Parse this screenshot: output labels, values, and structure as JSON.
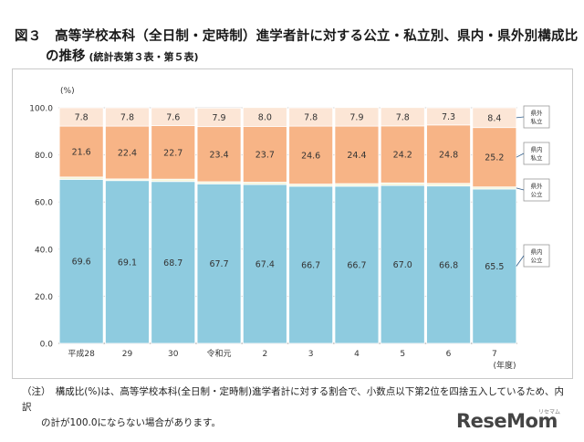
{
  "header": {
    "title_line1": "図３　高等学校本科（全日制・定時制）進学者計に対する公立・私立別、県内・県外別構成比",
    "title_line2": "の推移",
    "title_sub": "(統計表第３表・第５表)"
  },
  "note": {
    "line1": "（注）　構成比(%)は、高等学校本科(全日制・定時制)進学者計に対する割合で、小数点以下第2位を四捨五入しているため、内訳",
    "line2": "の計が100.0にならない場合があります。"
  },
  "logo": {
    "text": "ReseMom",
    "ruby": "リセマム"
  },
  "colors": {
    "in_public": "#8ecbdf",
    "out_public": "#f4f6dc",
    "in_private": "#f7b486",
    "out_private": "#fce6d6",
    "grid": "#d6d6d6",
    "legend_line": "#2f5c8a"
  },
  "chart_data": {
    "type": "bar",
    "stacked": true,
    "yunit": "(%)",
    "xunit": "(年度)",
    "ylim": [
      0,
      100
    ],
    "yticks": [
      "0.0",
      "20.0",
      "40.0",
      "60.0",
      "80.0",
      "100.0"
    ],
    "ytick_values": [
      0,
      20,
      40,
      60,
      80,
      100
    ],
    "grid": true,
    "legend_placement": "right",
    "categories": [
      "平成28",
      "29",
      "30",
      "令和元",
      "2",
      "3",
      "4",
      "5",
      "6",
      "7"
    ],
    "series": [
      {
        "name": "県内公立",
        "color_key": "in_public",
        "values": [
          69.6,
          69.1,
          68.7,
          67.7,
          67.4,
          66.7,
          66.7,
          67.0,
          66.8,
          65.5
        ],
        "labels": [
          "69.6",
          "69.1",
          "68.7",
          "67.7",
          "67.4",
          "66.7",
          "66.7",
          "67.0",
          "66.8",
          "65.5"
        ]
      },
      {
        "name": "県外公立",
        "color_key": "out_public",
        "values": [
          1.0,
          0.7,
          1.0,
          0.9,
          1.0,
          0.9,
          1.1,
          1.1,
          1.1,
          0.9
        ],
        "labels": [
          "1.0",
          "0.7",
          "1.0",
          "0.9",
          "1.0",
          "0.9",
          "1.1",
          "1.1",
          "1.1",
          "0.9"
        ]
      },
      {
        "name": "県内私立",
        "color_key": "in_private",
        "values": [
          21.6,
          22.4,
          22.7,
          23.4,
          23.7,
          24.6,
          24.4,
          24.2,
          24.8,
          25.2
        ],
        "labels": [
          "21.6",
          "22.4",
          "22.7",
          "23.4",
          "23.7",
          "24.6",
          "24.4",
          "24.2",
          "24.8",
          "25.2"
        ]
      },
      {
        "name": "県外私立",
        "color_key": "out_private",
        "values": [
          7.8,
          7.8,
          7.6,
          7.9,
          8.0,
          7.8,
          7.9,
          7.8,
          7.3,
          8.4
        ],
        "labels": [
          "7.8",
          "7.8",
          "7.6",
          "7.9",
          "8.0",
          "7.8",
          "7.9",
          "7.8",
          "7.3",
          "8.4"
        ]
      }
    ],
    "legend": [
      {
        "line1": "県外",
        "line2": "私立"
      },
      {
        "line1": "県内",
        "line2": "私立"
      },
      {
        "line1": "県外",
        "line2": "公立"
      },
      {
        "line1": "県内",
        "line2": "公立"
      }
    ]
  }
}
